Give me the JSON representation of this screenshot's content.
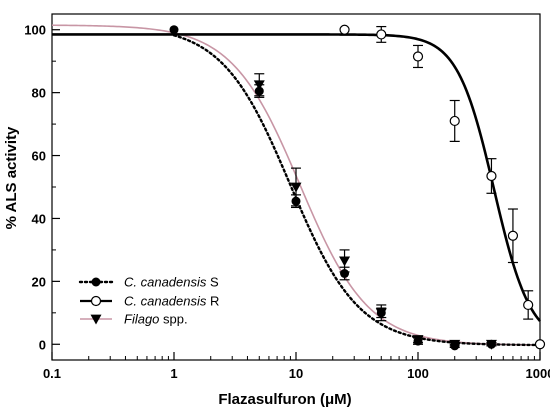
{
  "chart_data": {
    "type": "scatter",
    "title": "",
    "xlabel": "Flazasulfuron (μM)",
    "ylabel": "% ALS activity",
    "xscale": "log",
    "xlim": [
      0.1,
      1000
    ],
    "ylim": [
      -5,
      105
    ],
    "x_ticks": [
      0.1,
      1,
      10,
      100,
      1000
    ],
    "x_tick_labels": [
      "0.1",
      "1",
      "10",
      "100",
      "1000"
    ],
    "y_ticks": [
      0,
      20,
      40,
      60,
      80,
      100
    ],
    "y_tick_labels": [
      "0",
      "20",
      "40",
      "60",
      "80",
      "100"
    ],
    "grid": false,
    "legend_position": "bottom-left",
    "series": [
      {
        "name_italic": "C. canadensis",
        "name_suffix": "S",
        "marker": "filled-circle",
        "line_style": "dotted",
        "color": "#000000",
        "x": [
          1,
          5,
          10,
          25,
          50,
          100,
          200,
          400
        ],
        "y": [
          100,
          80.5,
          45.5,
          22.5,
          10,
          1,
          -0.5,
          0
        ],
        "err": [
          0,
          2,
          2,
          2,
          1.5,
          1,
          0.5,
          0.5
        ],
        "fit": {
          "top": 101.5,
          "bottom": -0.3,
          "ec50": 9.0,
          "slope": 1.55
        }
      },
      {
        "name_italic": "C. canadensis",
        "name_suffix": "R",
        "marker": "open-circle",
        "line_style": "solid",
        "color": "#000000",
        "x": [
          25,
          50,
          100,
          200,
          400,
          600,
          800,
          1000
        ],
        "y": [
          100,
          98.5,
          91.5,
          71,
          53.5,
          34.5,
          12.5,
          0
        ],
        "err": [
          0,
          2.5,
          3.5,
          6.5,
          5.5,
          8.5,
          4.5,
          0
        ],
        "fit": {
          "top": 98.5,
          "bottom": 0,
          "ec50": 420,
          "slope": 2.9
        }
      },
      {
        "name_italic": "Filago",
        "name_suffix": "spp.",
        "marker": "filled-triangle-down",
        "line_style": "solid",
        "color": "#c896a5",
        "x": [
          5,
          10,
          25,
          50,
          100,
          200,
          400
        ],
        "y": [
          82.5,
          50,
          26.5,
          10,
          1.5,
          0,
          0
        ],
        "err": [
          3.5,
          6,
          3.5,
          2.5,
          1,
          0.5,
          0.5
        ],
        "fit": {
          "top": 101.5,
          "bottom": -0.3,
          "ec50": 10.8,
          "slope": 1.55
        }
      }
    ]
  }
}
